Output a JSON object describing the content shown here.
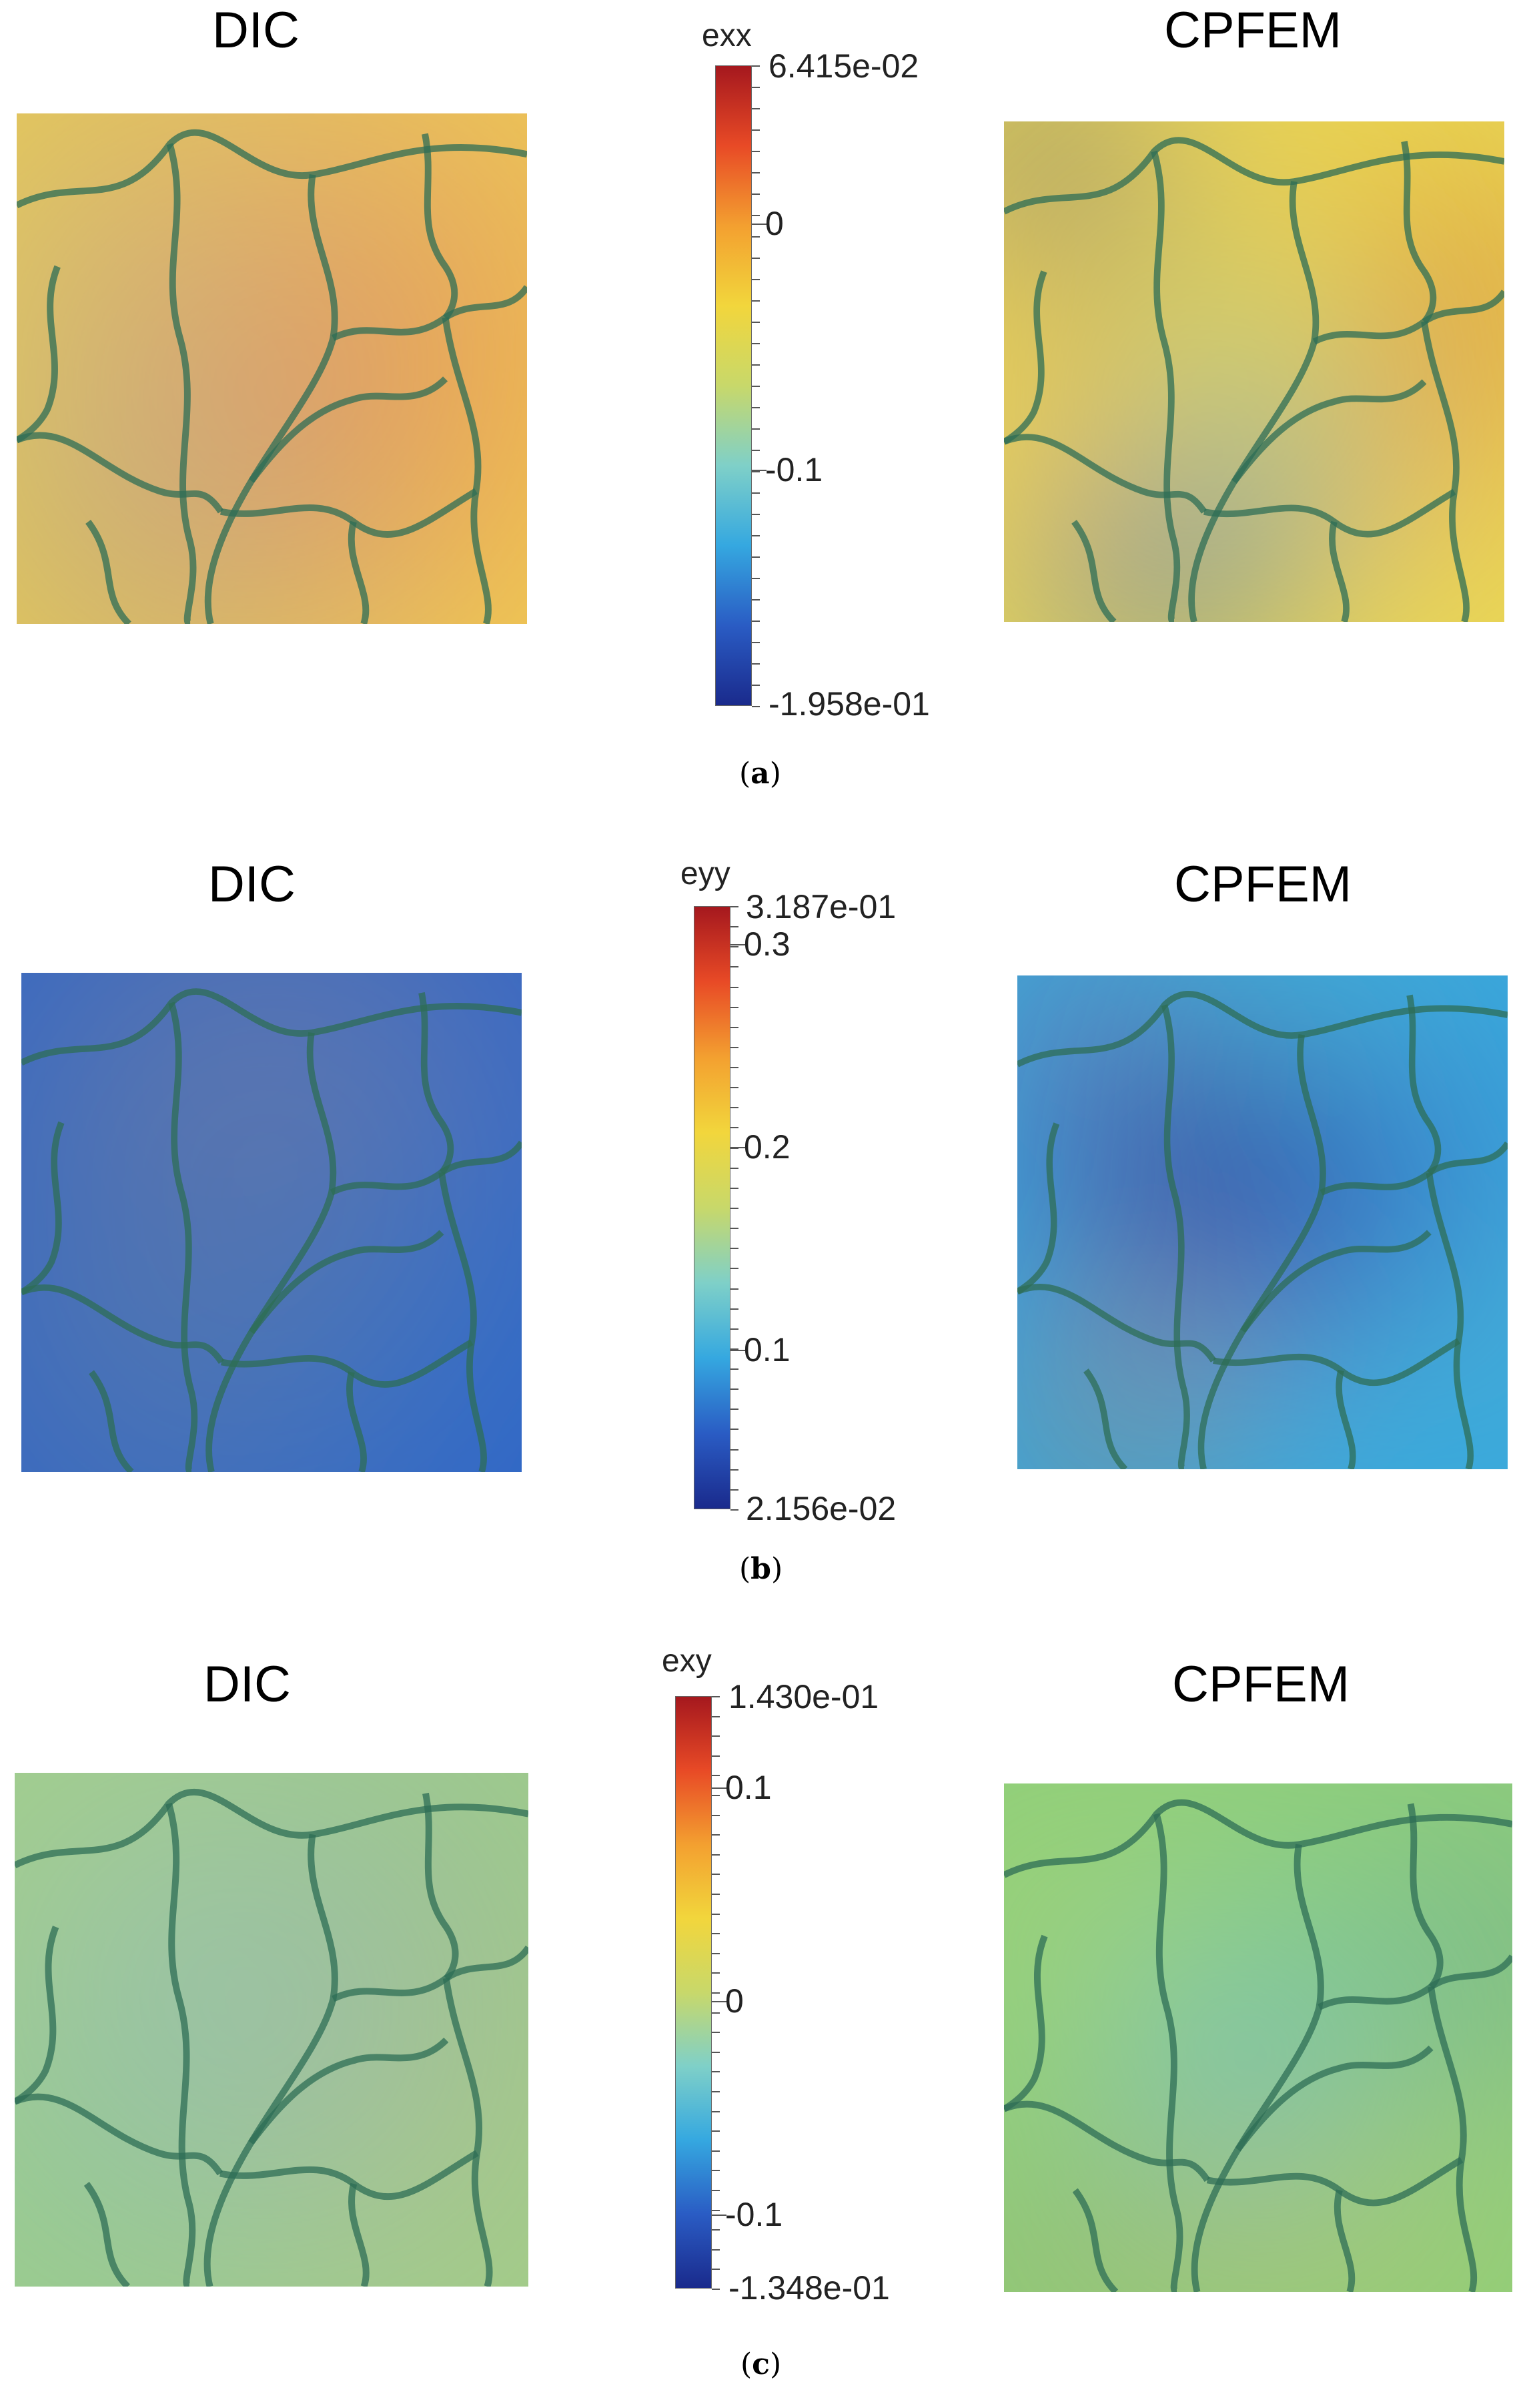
{
  "colormap": {
    "stops": [
      "#1a2a8c",
      "#2a5cc4",
      "#35a8e0",
      "#7fd0c8",
      "#c8d86a",
      "#f2d63c",
      "#f3a030",
      "#e84a26",
      "#a5181e"
    ],
    "boundary_color": "#2e6e55"
  },
  "panels": [
    {
      "id": "a",
      "caption_letter": "a",
      "left_title": "DIC",
      "right_title": "CPFEM",
      "colorbar": {
        "variable": "exx",
        "max_label": "6.415e-02",
        "min_label": "-1.958e-01",
        "vmax": 0.06415,
        "vmin": -0.1958,
        "major_ticks": [
          {
            "value": 0,
            "label": "0"
          },
          {
            "value": -0.1,
            "label": "-0.1"
          }
        ]
      }
    },
    {
      "id": "b",
      "caption_letter": "b",
      "left_title": "DIC",
      "right_title": "CPFEM",
      "colorbar": {
        "variable": "eyy",
        "max_label": "3.187e-01",
        "min_label": "2.156e-02",
        "vmax": 0.3187,
        "vmin": 0.02156,
        "major_ticks": [
          {
            "value": 0.3,
            "label": "0.3"
          },
          {
            "value": 0.2,
            "label": "0.2"
          },
          {
            "value": 0.1,
            "label": "0.1"
          }
        ]
      }
    },
    {
      "id": "c",
      "caption_letter": "c",
      "left_title": "DIC",
      "right_title": "CPFEM",
      "colorbar": {
        "variable": "exy",
        "max_label": "1.430e-01",
        "min_label": "-1.348e-01",
        "vmax": 0.143,
        "vmin": -0.1348,
        "major_ticks": [
          {
            "value": 0.1,
            "label": "0.1"
          },
          {
            "value": 0,
            "label": "0"
          },
          {
            "value": -0.1,
            "label": "-0.1"
          }
        ]
      }
    }
  ]
}
